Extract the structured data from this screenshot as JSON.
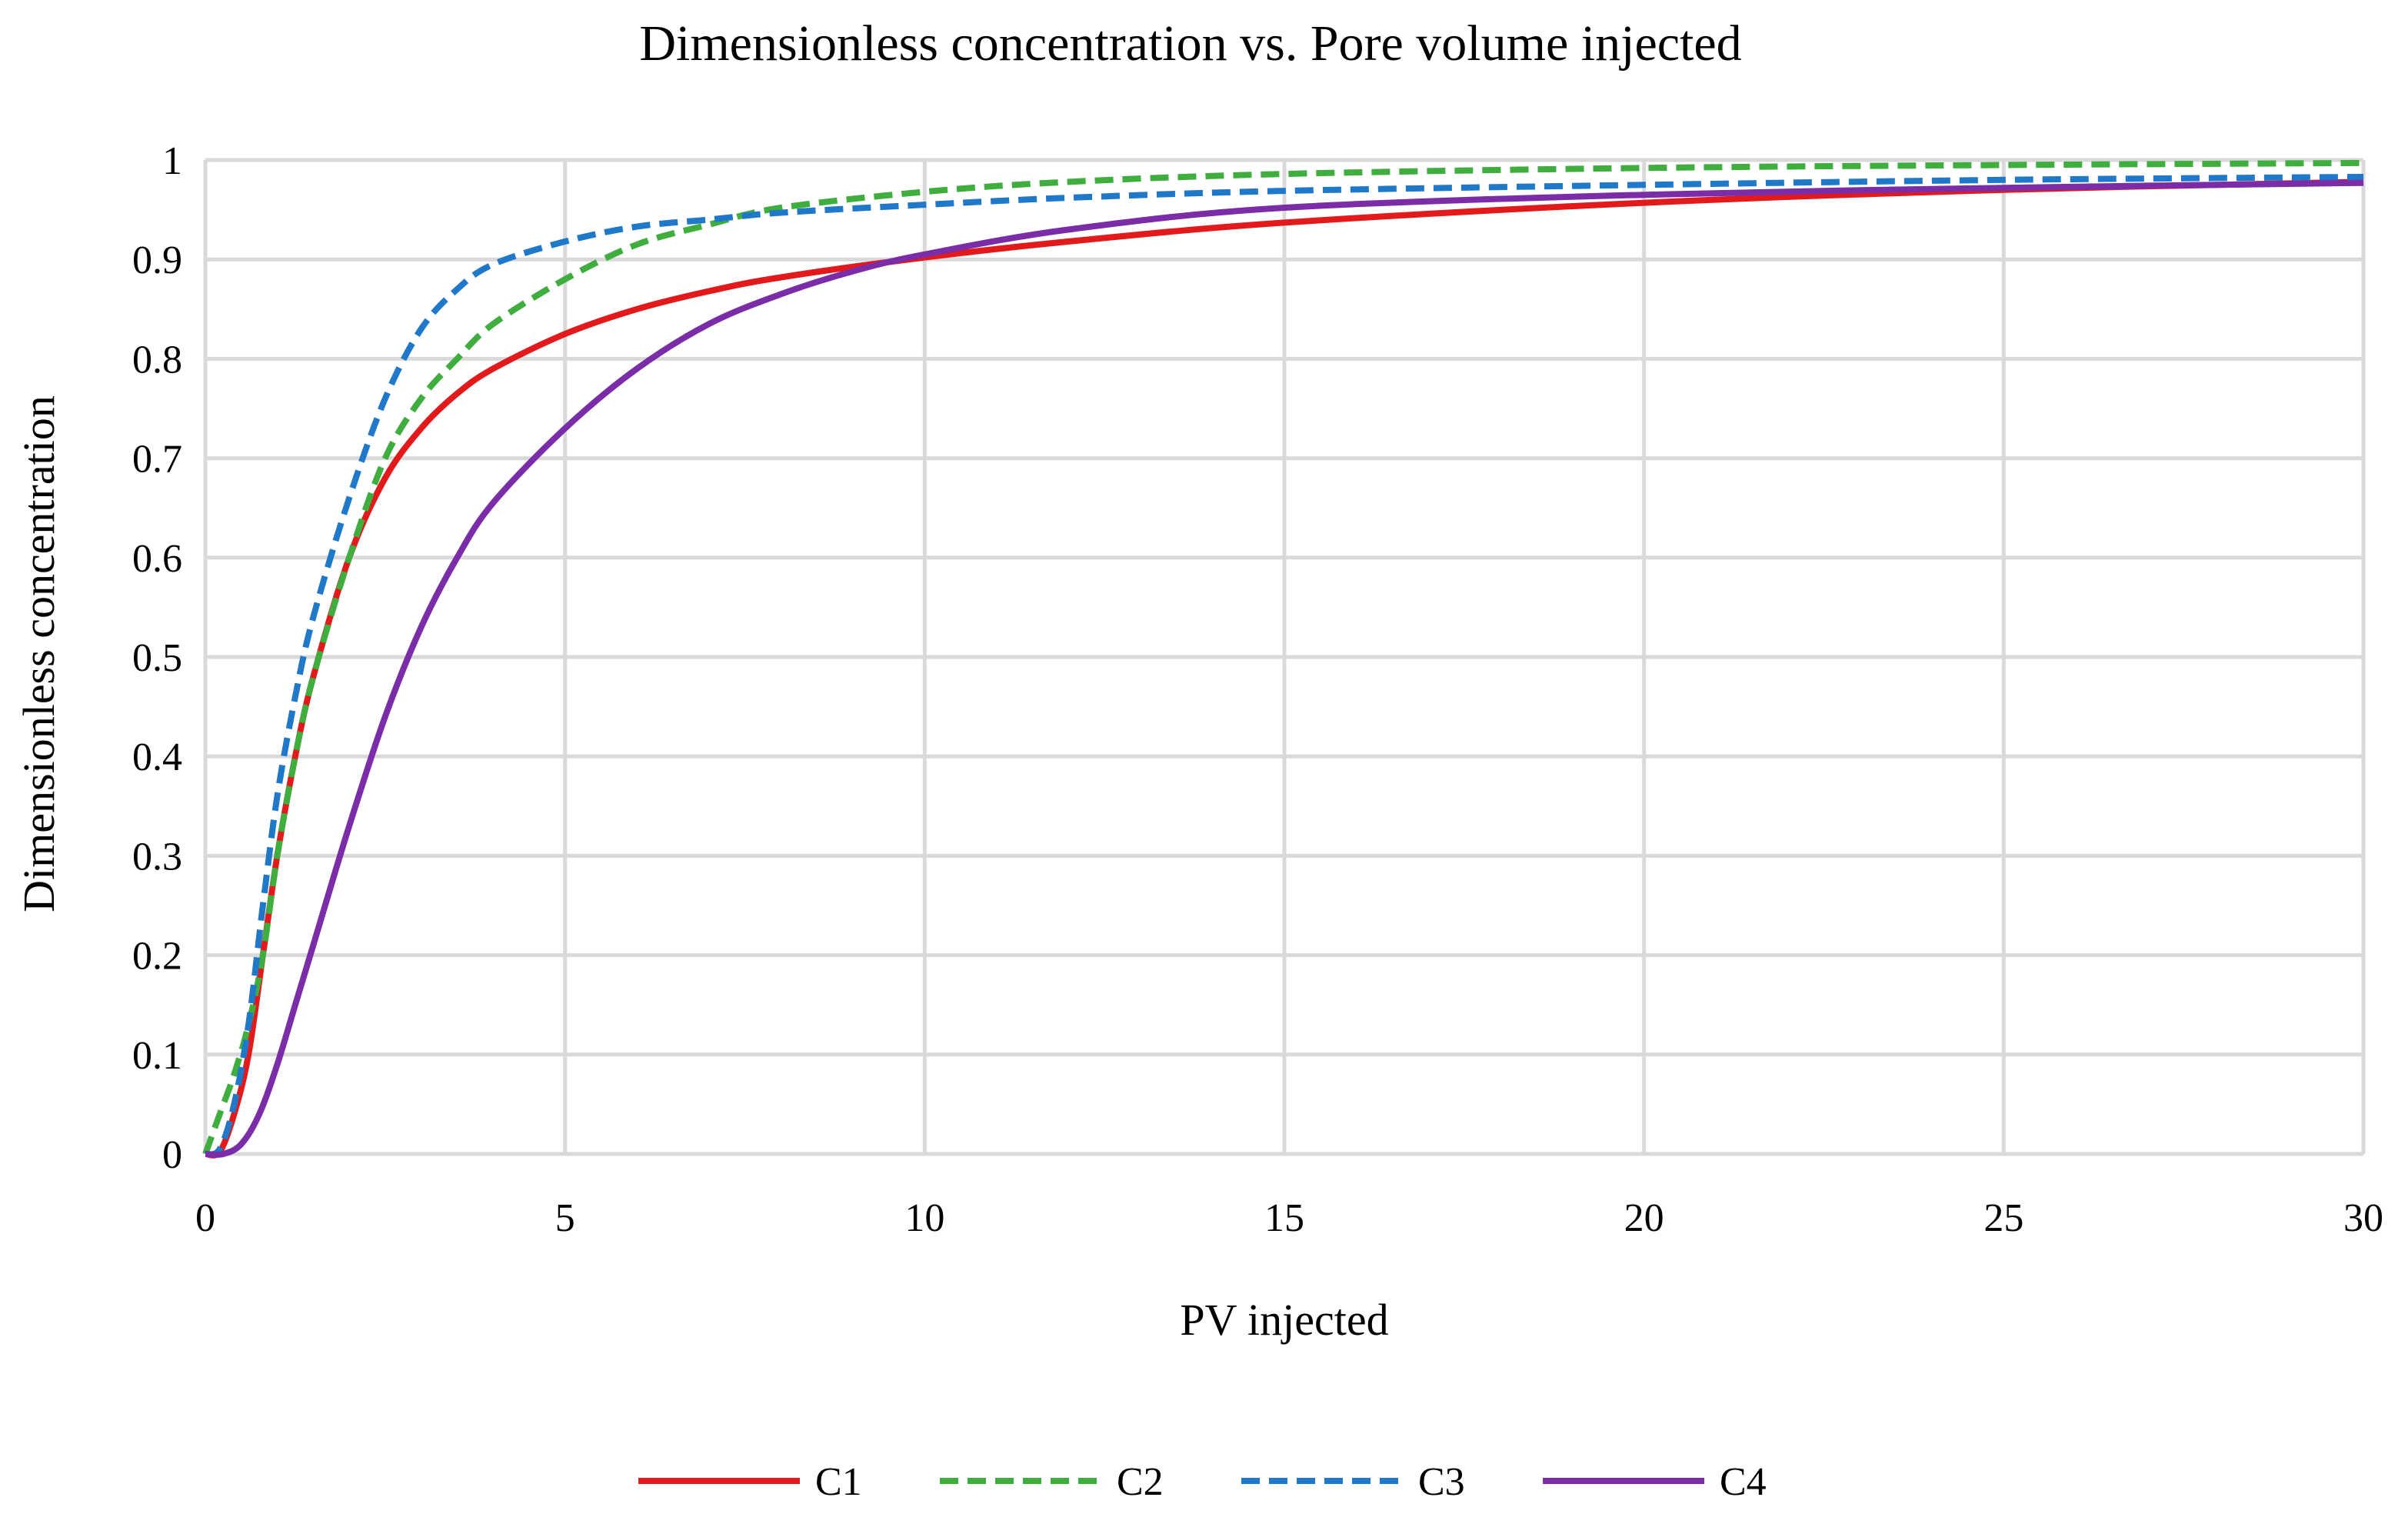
{
  "chart_data": {
    "type": "line",
    "title": "Dimensionless concentration vs. Pore volume injected",
    "xlabel": "PV injected",
    "ylabel": "Dimensionless concentration",
    "xlim": [
      0,
      30
    ],
    "ylim": [
      0,
      1
    ],
    "x_ticks": [
      "0",
      "5",
      "10",
      "15",
      "20",
      "25",
      "30"
    ],
    "y_ticks": [
      "0",
      "0.1",
      "0.2",
      "0.3",
      "0.4",
      "0.5",
      "0.6",
      "0.7",
      "0.8",
      "0.9",
      "1"
    ],
    "grid": true,
    "legend_position": "bottom",
    "series": [
      {
        "name": "C1",
        "color": "#e31a1c",
        "dash": "solid",
        "x": [
          0,
          0.2,
          0.4,
          0.6,
          0.8,
          1.0,
          1.25,
          1.5,
          2,
          2.5,
          3,
          3.5,
          4,
          5,
          6,
          7,
          8,
          10,
          12,
          15,
          20,
          25,
          30
        ],
        "y": [
          0,
          0.002,
          0.04,
          0.1,
          0.2,
          0.3,
          0.4,
          0.48,
          0.6,
          0.68,
          0.73,
          0.765,
          0.79,
          0.825,
          0.85,
          0.868,
          0.882,
          0.902,
          0.918,
          0.937,
          0.957,
          0.97,
          0.978
        ]
      },
      {
        "name": "C2",
        "color": "#3fae3f",
        "dash": "dashed",
        "x": [
          0,
          0.2,
          0.4,
          0.6,
          0.8,
          1.0,
          1.25,
          1.5,
          2,
          2.5,
          3,
          3.5,
          4,
          5,
          6,
          7,
          8,
          10,
          12,
          15,
          20,
          25,
          30
        ],
        "y": [
          0,
          0.04,
          0.08,
          0.13,
          0.2,
          0.3,
          0.4,
          0.48,
          0.6,
          0.7,
          0.76,
          0.8,
          0.835,
          0.88,
          0.915,
          0.935,
          0.952,
          0.968,
          0.978,
          0.986,
          0.992,
          0.995,
          0.997
        ]
      },
      {
        "name": "C3",
        "color": "#1f78c8",
        "dash": "dashed",
        "x": [
          0,
          0.2,
          0.4,
          0.6,
          0.8,
          1.0,
          1.25,
          1.5,
          2,
          2.5,
          3,
          3.5,
          4,
          5,
          6,
          7,
          8,
          10,
          12,
          15,
          20,
          25,
          30
        ],
        "y": [
          0,
          0.005,
          0.05,
          0.13,
          0.25,
          0.36,
          0.46,
          0.54,
          0.66,
          0.76,
          0.83,
          0.87,
          0.895,
          0.918,
          0.933,
          0.94,
          0.947,
          0.955,
          0.962,
          0.969,
          0.975,
          0.98,
          0.983
        ]
      },
      {
        "name": "C4",
        "color": "#7b2ca7",
        "dash": "solid",
        "x": [
          0,
          0.25,
          0.5,
          0.75,
          1.0,
          1.25,
          1.5,
          2,
          2.5,
          3,
          3.5,
          4,
          5,
          6,
          7,
          8,
          9,
          10,
          12,
          15,
          20,
          25,
          30
        ],
        "y": [
          0,
          0.0,
          0.01,
          0.04,
          0.09,
          0.15,
          0.21,
          0.33,
          0.44,
          0.53,
          0.6,
          0.655,
          0.73,
          0.79,
          0.835,
          0.865,
          0.888,
          0.905,
          0.93,
          0.952,
          0.965,
          0.972,
          0.977
        ]
      }
    ]
  }
}
